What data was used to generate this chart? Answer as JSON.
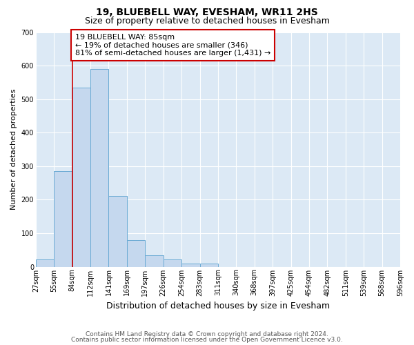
{
  "title1": "19, BLUEBELL WAY, EVESHAM, WR11 2HS",
  "title2": "Size of property relative to detached houses in Evesham",
  "xlabel": "Distribution of detached houses by size in Evesham",
  "ylabel": "Number of detached properties",
  "bar_values": [
    22,
    285,
    535,
    590,
    212,
    80,
    35,
    22,
    10,
    10,
    0,
    0,
    0,
    0,
    0,
    0,
    0,
    0,
    0,
    0
  ],
  "bar_edge_labels": [
    "27sqm",
    "55sqm",
    "84sqm",
    "112sqm",
    "141sqm",
    "169sqm",
    "197sqm",
    "226sqm",
    "254sqm",
    "283sqm",
    "311sqm",
    "340sqm",
    "368sqm",
    "397sqm",
    "425sqm",
    "454sqm",
    "482sqm",
    "511sqm",
    "539sqm",
    "568sqm",
    "596sqm"
  ],
  "bar_color": "#c5d8ee",
  "bar_edge_color": "#6aaad4",
  "vline_bin_index": 2,
  "vline_color": "#cc0000",
  "annotation_text": "19 BLUEBELL WAY: 85sqm\n← 19% of detached houses are smaller (346)\n81% of semi-detached houses are larger (1,431) →",
  "annotation_box_facecolor": "#ffffff",
  "annotation_box_edgecolor": "#cc0000",
  "ylim": [
    0,
    700
  ],
  "yticks": [
    0,
    100,
    200,
    300,
    400,
    500,
    600,
    700
  ],
  "footer1": "Contains HM Land Registry data © Crown copyright and database right 2024.",
  "footer2": "Contains public sector information licensed under the Open Government Licence v3.0.",
  "plot_bg_color": "#dce9f5",
  "grid_color": "#ffffff",
  "title1_fontsize": 10,
  "title2_fontsize": 9,
  "xlabel_fontsize": 9,
  "ylabel_fontsize": 8,
  "tick_fontsize": 7,
  "footer_fontsize": 6.5,
  "annot_fontsize": 8
}
